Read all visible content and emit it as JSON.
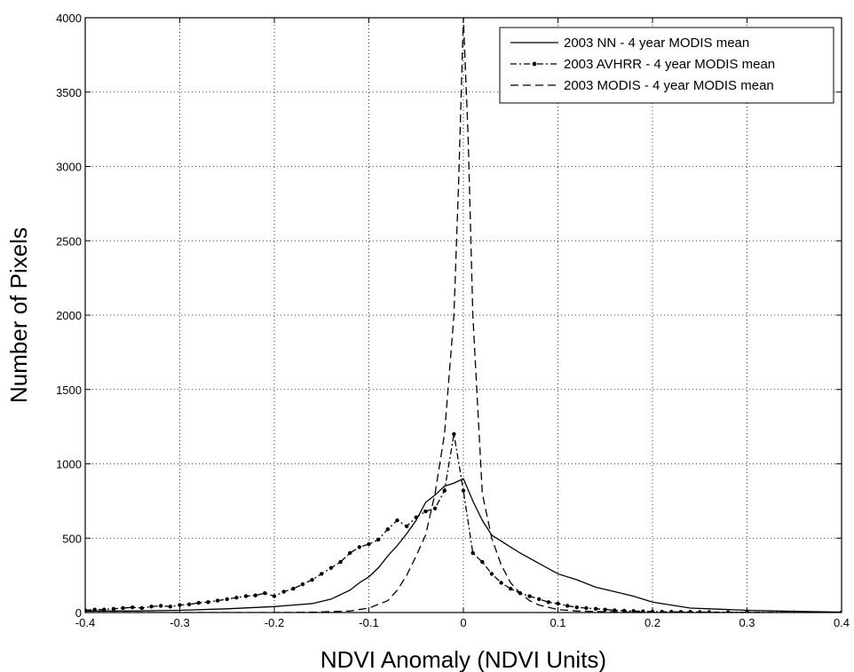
{
  "chart_data": {
    "type": "line",
    "title": "",
    "xlabel": "NDVI Anomaly (NDVI Units)",
    "ylabel": "Number of Pixels",
    "xlim": [
      -0.4,
      0.4
    ],
    "ylim": [
      0,
      4000
    ],
    "xticks": [
      -0.4,
      -0.3,
      -0.2,
      -0.1,
      0,
      0.1,
      0.2,
      0.3,
      0.4
    ],
    "xtick_labels": [
      "-0.4",
      "-0.3",
      "-0.2",
      "-0.1",
      "0",
      "0.1",
      "0.2",
      "0.3",
      "0.4"
    ],
    "yticks": [
      0,
      500,
      1000,
      1500,
      2000,
      2500,
      3000,
      3500,
      4000
    ],
    "ytick_labels": [
      "0",
      "500",
      "1000",
      "1500",
      "2000",
      "2500",
      "3000",
      "3500",
      "4000"
    ],
    "grid": true,
    "legend_position": "top-right",
    "series": [
      {
        "name": "2003 NN - 4 year MODIS mean",
        "style": "solid",
        "color": "#000000",
        "x": [
          -0.4,
          -0.35,
          -0.3,
          -0.25,
          -0.2,
          -0.18,
          -0.16,
          -0.14,
          -0.12,
          -0.11,
          -0.1,
          -0.09,
          -0.08,
          -0.07,
          -0.06,
          -0.05,
          -0.04,
          -0.03,
          -0.02,
          -0.01,
          0,
          0.01,
          0.02,
          0.03,
          0.04,
          0.05,
          0.06,
          0.08,
          0.1,
          0.12,
          0.14,
          0.16,
          0.18,
          0.2,
          0.22,
          0.24,
          0.26,
          0.3,
          0.35,
          0.4
        ],
        "y": [
          10,
          10,
          15,
          25,
          40,
          50,
          60,
          90,
          150,
          200,
          240,
          300,
          380,
          450,
          530,
          620,
          740,
          790,
          850,
          870,
          900,
          750,
          620,
          520,
          480,
          440,
          400,
          330,
          260,
          220,
          170,
          140,
          110,
          70,
          50,
          30,
          25,
          15,
          8,
          3
        ]
      },
      {
        "name": "2003 AVHRR - 4 year MODIS mean",
        "style": "dash-dot-marker",
        "color": "#000000",
        "x": [
          -0.4,
          -0.39,
          -0.38,
          -0.37,
          -0.36,
          -0.35,
          -0.34,
          -0.33,
          -0.32,
          -0.31,
          -0.3,
          -0.29,
          -0.28,
          -0.27,
          -0.26,
          -0.25,
          -0.24,
          -0.23,
          -0.22,
          -0.21,
          -0.2,
          -0.19,
          -0.18,
          -0.17,
          -0.16,
          -0.15,
          -0.14,
          -0.13,
          -0.12,
          -0.11,
          -0.1,
          -0.09,
          -0.08,
          -0.07,
          -0.06,
          -0.05,
          -0.04,
          -0.03,
          -0.02,
          -0.01,
          0,
          0.01,
          0.02,
          0.03,
          0.04,
          0.05,
          0.06,
          0.07,
          0.08,
          0.09,
          0.1,
          0.11,
          0.12,
          0.13,
          0.14,
          0.15,
          0.16,
          0.17,
          0.18,
          0.19,
          0.2,
          0.21,
          0.22,
          0.23,
          0.24,
          0.25,
          0.26,
          0.28,
          0.3,
          0.35,
          0.4
        ],
        "y": [
          15,
          20,
          20,
          25,
          30,
          35,
          30,
          40,
          45,
          40,
          50,
          55,
          65,
          70,
          80,
          90,
          100,
          110,
          115,
          130,
          110,
          140,
          160,
          190,
          220,
          260,
          300,
          340,
          400,
          440,
          460,
          490,
          560,
          620,
          580,
          640,
          680,
          700,
          820,
          1200,
          820,
          400,
          340,
          260,
          200,
          160,
          130,
          110,
          90,
          70,
          60,
          45,
          35,
          30,
          25,
          20,
          15,
          12,
          10,
          8,
          6,
          5,
          5,
          4,
          4,
          3,
          3,
          2,
          2,
          1,
          1
        ]
      },
      {
        "name": "2003 MODIS - 4 year MODIS mean",
        "style": "dashed",
        "color": "#000000",
        "x": [
          -0.4,
          -0.3,
          -0.2,
          -0.16,
          -0.12,
          -0.1,
          -0.08,
          -0.07,
          -0.06,
          -0.05,
          -0.04,
          -0.03,
          -0.02,
          -0.01,
          -0.005,
          0,
          0.005,
          0.01,
          0.015,
          0.02,
          0.03,
          0.04,
          0.05,
          0.06,
          0.07,
          0.08,
          0.1,
          0.12,
          0.15,
          0.2,
          0.3,
          0.4
        ],
        "y": [
          0,
          0,
          0,
          2,
          10,
          30,
          80,
          150,
          250,
          380,
          520,
          800,
          1200,
          2000,
          2900,
          4000,
          3200,
          2000,
          1400,
          800,
          500,
          320,
          200,
          130,
          80,
          50,
          20,
          10,
          5,
          2,
          0,
          0
        ]
      }
    ]
  }
}
